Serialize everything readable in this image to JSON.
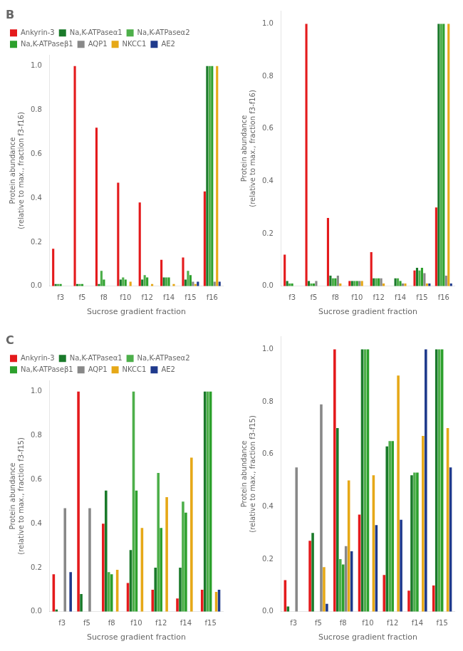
{
  "chart_data": [
    {
      "type": "bar",
      "title": "B",
      "categories": [
        "f3",
        "f5",
        "f8",
        "f10",
        "f12",
        "f14",
        "f15",
        "f16"
      ],
      "series": [
        {
          "name": "Ankyrin-3",
          "color": "#e41a1c",
          "values": [
            0.17,
            1.0,
            0.72,
            0.47,
            0.38,
            0.12,
            0.13,
            0.43
          ]
        },
        {
          "name": "Na,K-ATPaseα1",
          "color": "#1a7a2a",
          "values": [
            0.01,
            0.01,
            0.01,
            0.03,
            0.03,
            0.04,
            0.03,
            1.0
          ]
        },
        {
          "name": "Na,K-ATPaseα2",
          "color": "#4daf4a",
          "values": [
            0.01,
            0.01,
            0.07,
            0.04,
            0.05,
            0.04,
            0.07,
            1.0
          ]
        },
        {
          "name": "Na,K-ATPaseβ1",
          "color": "#2ca02c",
          "values": [
            0.01,
            0.01,
            0.03,
            0.03,
            0.04,
            0.04,
            0.05,
            1.0
          ]
        },
        {
          "name": "AQP1",
          "color": "#888888",
          "values": [
            0.0,
            0.0,
            0.0,
            0.0,
            0.0,
            0.0,
            0.02,
            0.02
          ]
        },
        {
          "name": "NKCC1",
          "color": "#e6a817",
          "values": [
            0.0,
            0.0,
            0.0,
            0.02,
            0.01,
            0.01,
            0.01,
            1.0
          ]
        },
        {
          "name": "AE2",
          "color": "#1f3a8c",
          "values": [
            0.0,
            0.0,
            0.0,
            0.0,
            0.0,
            0.0,
            0.02,
            0.02
          ]
        }
      ],
      "xlabel": "Sucrose gradient fraction",
      "ylabel": "Protein abundance\n(relative to max., fraction f3-f16)",
      "ylim": [
        0,
        1.05
      ],
      "yticks": [
        {
          "value": 0,
          "label": "0.0"
        },
        0.2,
        0.4,
        0.6,
        0.8,
        {
          "value": 1,
          "label": "1.0"
        }
      ],
      "grid": false,
      "legend": "top"
    },
    {
      "type": "bar",
      "categories": [
        "f3",
        "f5",
        "f8",
        "f10",
        "f12",
        "f14",
        "f15",
        "f16"
      ],
      "series": [
        {
          "name": "Ankyrin-3",
          "color": "#e41a1c",
          "values": [
            0.12,
            1.0,
            0.26,
            0.02,
            0.13,
            0.0,
            0.06,
            0.3
          ]
        },
        {
          "name": "Na,K-ATPaseα1",
          "color": "#1a7a2a",
          "values": [
            0.02,
            0.02,
            0.04,
            0.02,
            0.03,
            0.03,
            0.07,
            1.0
          ]
        },
        {
          "name": "Na,K-ATPaseα2",
          "color": "#4daf4a",
          "values": [
            0.01,
            0.01,
            0.03,
            0.02,
            0.03,
            0.03,
            0.06,
            1.0
          ]
        },
        {
          "name": "Na,K-ATPaseβ1",
          "color": "#2ca02c",
          "values": [
            0.01,
            0.01,
            0.03,
            0.02,
            0.03,
            0.02,
            0.07,
            1.0
          ]
        },
        {
          "name": "AQP1",
          "color": "#888888",
          "values": [
            0.0,
            0.02,
            0.04,
            0.02,
            0.03,
            0.01,
            0.05,
            0.04
          ]
        },
        {
          "name": "NKCC1",
          "color": "#e6a817",
          "values": [
            0.0,
            0.0,
            0.01,
            0.02,
            0.01,
            0.01,
            0.01,
            1.0
          ]
        },
        {
          "name": "AE2",
          "color": "#1f3a8c",
          "values": [
            0.0,
            0.0,
            0.0,
            0.0,
            0.0,
            0.0,
            0.01,
            0.01
          ]
        }
      ],
      "xlabel": "Sucrose gradient fraction",
      "ylabel": "Protein abundance\n(relative to max., fraction f3-f16)",
      "ylim": [
        0,
        1.05
      ],
      "yticks": [
        {
          "value": 0,
          "label": "0.0"
        },
        0.2,
        0.4,
        0.6,
        0.8,
        {
          "value": 1,
          "label": "1.0"
        }
      ],
      "grid": false
    },
    {
      "type": "bar",
      "title": "C",
      "categories": [
        "f3",
        "f5",
        "f8",
        "f10",
        "f12",
        "f14",
        "f15"
      ],
      "series": [
        {
          "name": "Ankyrin-3",
          "color": "#e41a1c",
          "values": [
            0.17,
            1.0,
            0.4,
            0.13,
            0.1,
            0.06,
            0.1
          ]
        },
        {
          "name": "Na,K-ATPaseα1",
          "color": "#1a7a2a",
          "values": [
            0.01,
            0.08,
            0.55,
            0.28,
            0.2,
            0.2,
            1.0
          ]
        },
        {
          "name": "Na,K-ATPaseα2",
          "color": "#4daf4a",
          "values": [
            0.0,
            0.0,
            0.18,
            1.0,
            0.63,
            0.5,
            1.0
          ]
        },
        {
          "name": "Na,K-ATPaseβ1",
          "color": "#2ca02c",
          "values": [
            0.0,
            0.0,
            0.17,
            0.55,
            0.38,
            0.45,
            1.0
          ]
        },
        {
          "name": "AQP1",
          "color": "#888888",
          "values": [
            0.47,
            0.47,
            0.0,
            0.0,
            0.0,
            0.0,
            0.0
          ]
        },
        {
          "name": "NKCC1",
          "color": "#e6a817",
          "values": [
            0.0,
            0.0,
            0.19,
            0.38,
            0.52,
            0.7,
            0.09
          ]
        },
        {
          "name": "AE2",
          "color": "#1f3a8c",
          "values": [
            0.18,
            0.0,
            0.0,
            0.0,
            0.0,
            0.0,
            0.1
          ]
        }
      ],
      "xlabel": "Sucrose gradient fraction",
      "ylabel": "Protein abundance\n(relative to max., fraction f3-f15)",
      "ylim": [
        0,
        1.05
      ],
      "yticks": [
        {
          "value": 0,
          "label": "0.0"
        },
        0.2,
        0.4,
        0.6,
        0.8,
        {
          "value": 1,
          "label": "1.0"
        }
      ],
      "grid": false,
      "legend": "top"
    },
    {
      "type": "bar",
      "categories": [
        "f3",
        "f5",
        "f8",
        "f10",
        "f12",
        "f14",
        "f15"
      ],
      "series": [
        {
          "name": "Ankyrin-3",
          "color": "#e41a1c",
          "values": [
            0.12,
            0.27,
            1.0,
            0.37,
            0.14,
            0.08,
            0.1
          ]
        },
        {
          "name": "Na,K-ATPaseα1",
          "color": "#1a7a2a",
          "values": [
            0.02,
            0.3,
            0.7,
            1.0,
            0.63,
            0.52,
            1.0
          ]
        },
        {
          "name": "Na,K-ATPaseα2",
          "color": "#4daf4a",
          "values": [
            0.0,
            0.0,
            0.2,
            1.0,
            0.65,
            0.53,
            1.0
          ]
        },
        {
          "name": "Na,K-ATPaseβ1",
          "color": "#2ca02c",
          "values": [
            0.0,
            0.0,
            0.18,
            1.0,
            0.65,
            0.53,
            1.0
          ]
        },
        {
          "name": "AQP1",
          "color": "#888888",
          "values": [
            0.55,
            0.79,
            0.25,
            0.0,
            0.0,
            0.0,
            0.0
          ]
        },
        {
          "name": "NKCC1",
          "color": "#e6a817",
          "values": [
            0.0,
            0.17,
            0.5,
            0.52,
            0.9,
            0.67,
            0.7
          ]
        },
        {
          "name": "AE2",
          "color": "#1f3a8c",
          "values": [
            0.0,
            0.03,
            0.23,
            0.33,
            0.35,
            1.0,
            0.55
          ]
        }
      ],
      "xlabel": "Sucrose gradient fraction",
      "ylabel": "Protein abundance\n(relative to max., fraction f3-f15)",
      "ylim": [
        0,
        1.05
      ],
      "yticks": [
        {
          "value": 0,
          "label": "0.0"
        },
        0.2,
        0.4,
        0.6,
        0.8,
        {
          "value": 1,
          "label": "1.0"
        }
      ],
      "grid": false
    }
  ]
}
